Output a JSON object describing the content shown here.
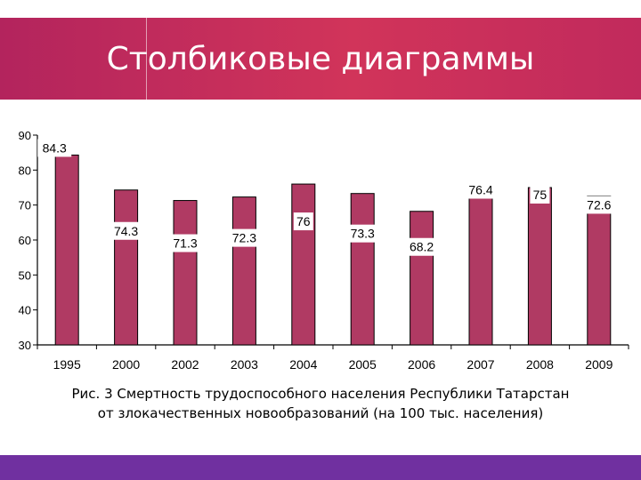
{
  "slide": {
    "title": "Столбиковые диаграммы",
    "caption_line1": "Рис. 3 Смертность трудоспособного населения Республики Татарстан",
    "caption_line2": "от злокачественных новообразований  (на 100 тыс. населения)"
  },
  "colors": {
    "header": "#c82a5c",
    "bar_fill": "#b03a63",
    "bar_stroke": "#000000",
    "footer": "#7030a0"
  },
  "chart_data": {
    "type": "bar",
    "categories": [
      "1995",
      "2000",
      "2002",
      "2003",
      "2004",
      "2005",
      "2006",
      "2007",
      "2008",
      "2009"
    ],
    "values": [
      84.3,
      74.3,
      71.3,
      72.3,
      76,
      73.3,
      68.2,
      76.4,
      75,
      72.6
    ],
    "data_labels": [
      "84.3",
      "74.3",
      "71.3",
      "72.3",
      "76",
      "73.3",
      "68.2",
      "76.4",
      "75",
      "72.6"
    ],
    "ylim": [
      30,
      90
    ],
    "yticks": [
      30,
      40,
      50,
      60,
      70,
      80,
      90
    ],
    "grid": false,
    "legend": "none",
    "title": "",
    "xlabel": "",
    "ylabel": ""
  }
}
